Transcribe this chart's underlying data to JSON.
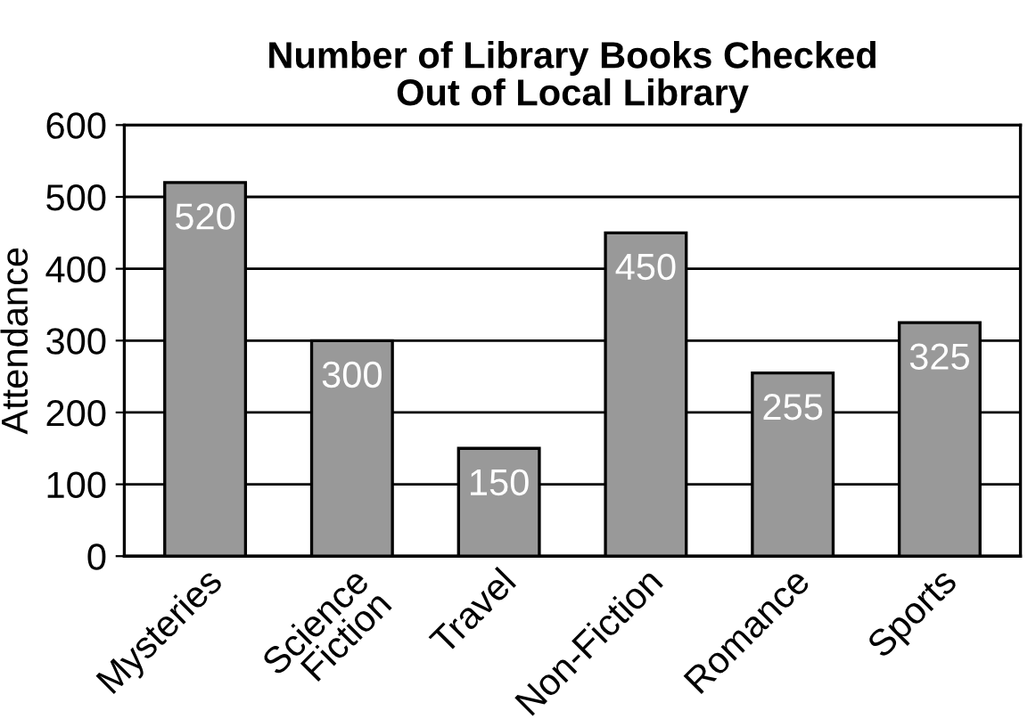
{
  "chart_data": {
    "type": "bar",
    "title": "Number of Library Books Checked\nOut of Local Library",
    "ylabel": "Attendance",
    "categories": [
      "Mysteries",
      "Science\nFiction",
      "Travel",
      "Non-Fiction",
      "Romance",
      "Sports"
    ],
    "values": [
      520,
      300,
      150,
      450,
      255,
      325
    ],
    "color": "#999999",
    "ylim": [
      0,
      600
    ],
    "yticks": [
      0,
      100,
      200,
      300,
      400,
      500,
      600
    ],
    "grid": "y",
    "data_labels": true
  }
}
